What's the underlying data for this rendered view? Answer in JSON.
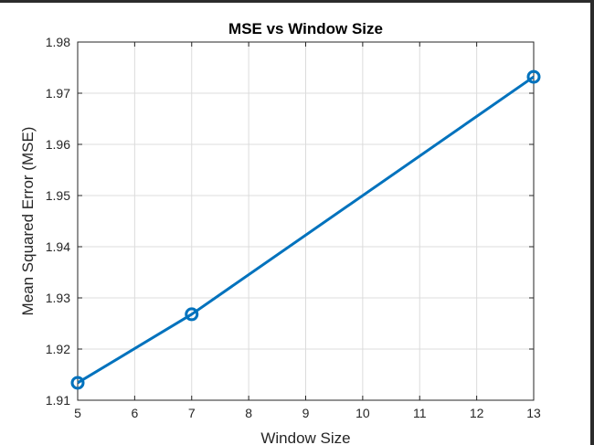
{
  "chart_data": {
    "type": "line",
    "title": "MSE vs Window Size",
    "xlabel": "Window Size",
    "ylabel": "Mean Squared Error (MSE)",
    "xlim": [
      5,
      13
    ],
    "ylim": [
      1.91,
      1.98
    ],
    "xticks": [
      5,
      6,
      7,
      8,
      9,
      10,
      11,
      12,
      13
    ],
    "yticks": [
      1.91,
      1.92,
      1.93,
      1.94,
      1.95,
      1.96,
      1.97,
      1.98
    ],
    "grid": true,
    "series": [
      {
        "x": [
          5,
          7,
          13
        ],
        "y": [
          1.9134,
          1.9268,
          1.9732
        ],
        "color": "#0072BD",
        "marker": "circle"
      }
    ]
  }
}
